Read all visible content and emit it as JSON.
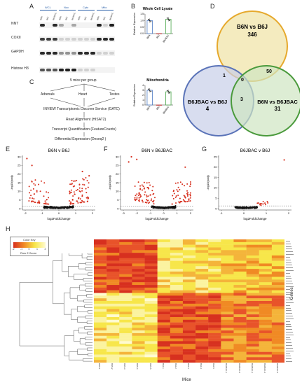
{
  "panels": {
    "a": "A",
    "b": "B",
    "c": "C",
    "d": "D",
    "e": "E",
    "f": "F",
    "g": "G",
    "h": "H"
  },
  "panelA": {
    "group_labels": [
      "WCL",
      "Nuc",
      "Cyto",
      "Mito"
    ],
    "lane_labels": [
      "B6N",
      "B6J",
      "B6JBAC",
      "B6N",
      "B6J",
      "B6JBAC",
      "B6N",
      "B6J",
      "B6JBAC",
      "B6N",
      "B6J",
      "B6JBAC"
    ],
    "row_labels": [
      "NNT",
      "COXII",
      "GAPDH",
      "Histone H3"
    ]
  },
  "panelB": {
    "charts": [
      {
        "type": "bar",
        "title": "Whole Cell Lysate",
        "ylabel": "Relative Expression",
        "categories": [
          "B6N",
          "B6J",
          "B6JBAC"
        ],
        "values": [
          1.0,
          0.0,
          1.1
        ],
        "ylim": [
          0,
          1.5
        ],
        "yticks": [
          "0.0",
          "0.5",
          "1.0",
          "1.5"
        ],
        "colors": [
          "#4a78c2",
          "#c23b3b",
          "#4aa64a"
        ]
      },
      {
        "type": "bar",
        "title": "Mitochondria",
        "ylabel": "Relative Expression",
        "categories": [
          "B6N",
          "B6J",
          "B6JBAC"
        ],
        "values": [
          3.0,
          0.0,
          2.7
        ],
        "ylim": [
          0,
          4
        ],
        "yticks": [
          "0",
          "1",
          "2",
          "3",
          "4"
        ],
        "colors": [
          "#4a78c2",
          "#c23b3b",
          "#4aa64a"
        ]
      }
    ]
  },
  "panelC": {
    "top": "5 mice per group",
    "tissues": [
      "Adrenals",
      "Heart",
      "Testes"
    ],
    "steps": [
      "INVIEW Transcriptomic Discover Service (GATC)",
      "Read Alignment (HISAT2)",
      "Transcript Quantification (FeatureCounts)",
      "Differential Expression (Deseq2 )"
    ]
  },
  "panelD": {
    "sets": [
      {
        "label": "B6N vs B6J",
        "count": "346",
        "color": "#f2e7b4"
      },
      {
        "label": "B6JBAC vs B6J",
        "count": "4",
        "color": "#c7cfe8"
      },
      {
        "label": "B6N vs B6JBAC",
        "count": "31",
        "color": "#cfe6c2"
      }
    ],
    "intersections": {
      "ab": "1",
      "ac": "50",
      "bc": "3",
      "abc": "0"
    }
  },
  "volcano": [
    {
      "title": "B6N v B6J",
      "xlabel": "log2FoldChange",
      "ylabel": "-log10(padj)",
      "xticks": [
        "-2",
        "-1",
        "0",
        "1",
        "2"
      ],
      "yticks": [
        "0",
        "5",
        "10",
        "15",
        "20",
        "25",
        "30"
      ]
    },
    {
      "title": "B6N v B6JBAC",
      "xlabel": "log2FoldChange",
      "ylabel": "-log10(padj)",
      "xticks": [
        "-3",
        "-2",
        "-1",
        "0",
        "1",
        "2"
      ],
      "yticks": [
        "0",
        "5",
        "10",
        "15",
        "20",
        "25",
        "30"
      ]
    },
    {
      "title": "B6JBAC v B6J",
      "xlabel": "log2FoldChange",
      "ylabel": "-log10(padj)",
      "xticks": [
        "-1",
        "0",
        "1",
        "2"
      ],
      "yticks": [
        "0",
        "5",
        "10",
        "15",
        "20",
        "25"
      ]
    }
  ],
  "heatmap": {
    "color_key_title": "Color Key",
    "color_key_sublabel": "Row Z-Score",
    "color_key_ticks": [
      "-2",
      "-1",
      "0",
      "1",
      "2"
    ],
    "xlabel": "Mice",
    "ylabel": "Genes",
    "columns": [
      "B6N-1",
      "B6N-2",
      "B6N-3",
      "B6N-4",
      "B6N-5",
      "B6J-1",
      "B6J-2",
      "B6J-3",
      "B6J-4",
      "B6J-5",
      "B6JBAC-1",
      "B6JBAC-2",
      "B6JBAC-3",
      "B6JBAC-4",
      "B6JBAC-5"
    ]
  },
  "colors": {
    "red": "#d7301f",
    "orange": "#f08a24",
    "yellow": "#f7e64a",
    "pale": "#fffbd0"
  }
}
